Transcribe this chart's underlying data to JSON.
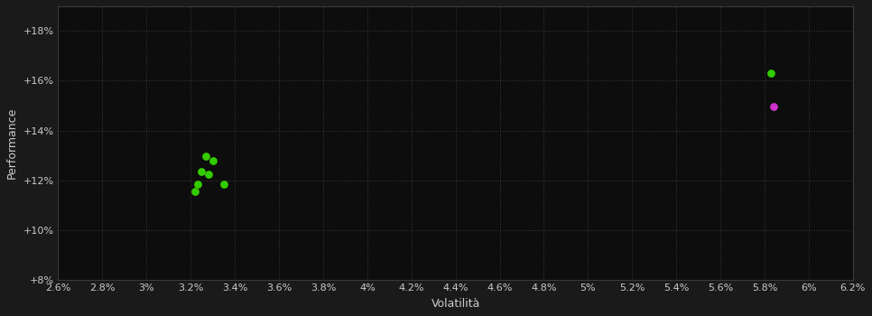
{
  "background_color": "#1a1a1a",
  "plot_bg_color": "#0d0d0d",
  "grid_color": "#3a3a3a",
  "text_color": "#cccccc",
  "xlabel": "Volatilità",
  "ylabel": "Performance",
  "xlim": [
    0.026,
    0.062
  ],
  "ylim": [
    0.08,
    0.19
  ],
  "xticks": [
    0.026,
    0.028,
    0.03,
    0.032,
    0.034,
    0.036,
    0.038,
    0.04,
    0.042,
    0.044,
    0.046,
    0.048,
    0.05,
    0.052,
    0.054,
    0.056,
    0.058,
    0.06,
    0.062
  ],
  "yticks": [
    0.08,
    0.1,
    0.12,
    0.14,
    0.16,
    0.18
  ],
  "green_points": [
    [
      0.0327,
      0.1295
    ],
    [
      0.033,
      0.128
    ],
    [
      0.0325,
      0.1235
    ],
    [
      0.0328,
      0.1225
    ],
    [
      0.0323,
      0.1185
    ],
    [
      0.0335,
      0.1185
    ],
    [
      0.0322,
      0.1155
    ]
  ],
  "magenta_points": [
    [
      0.0584,
      0.1495
    ]
  ],
  "green_solo_point": [
    0.0583,
    0.163
  ],
  "green_color": "#33cc00",
  "magenta_color": "#cc33cc",
  "marker_size": 28
}
